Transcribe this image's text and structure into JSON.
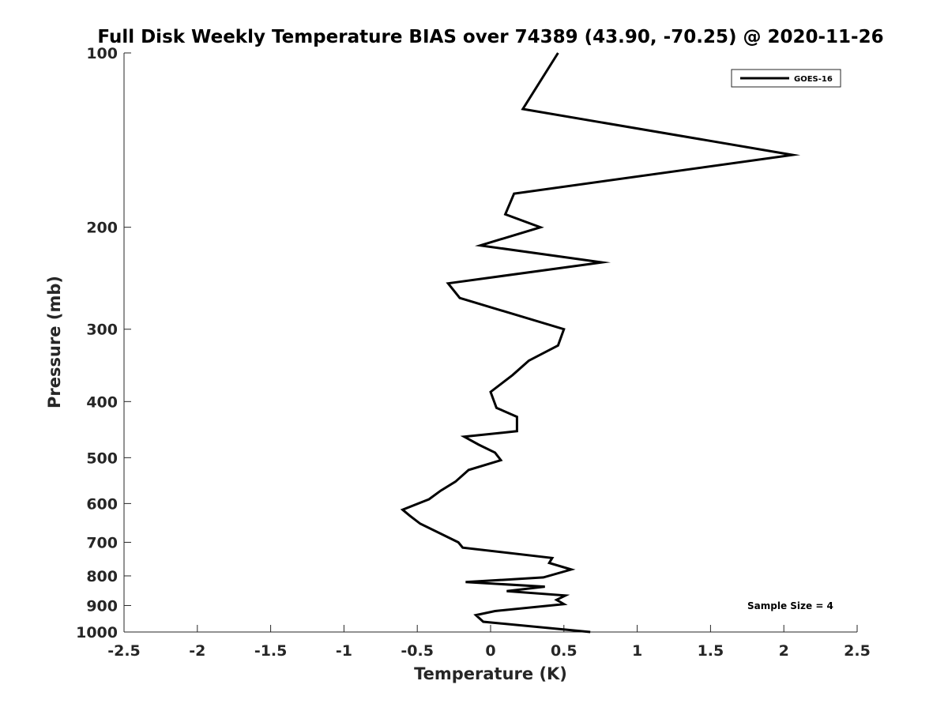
{
  "chart_data": {
    "type": "line",
    "title": "Full Disk Weekly Temperature BIAS over 74389 (43.90, -70.25) @ 2020-11-26",
    "xlabel": "Temperature (K)",
    "ylabel": "Pressure (mb)",
    "xlim": [
      -2.5,
      2.5
    ],
    "ylim": [
      100,
      1000
    ],
    "y_scale": "log",
    "y_reversed": true,
    "grid": false,
    "x_ticks": [
      -2.5,
      -2,
      -1.5,
      -1,
      -0.5,
      0,
      0.5,
      1,
      1.5,
      2,
      2.5
    ],
    "x_tick_labels": [
      "-2.5",
      "-2",
      "-1.5",
      "-1",
      "-0.5",
      "0",
      "0.5",
      "1",
      "1.5",
      "2",
      "2.5"
    ],
    "y_ticks": [
      100,
      200,
      300,
      400,
      500,
      600,
      700,
      800,
      900,
      1000
    ],
    "y_tick_labels": [
      "100",
      "200",
      "300",
      "400",
      "500",
      "600",
      "700",
      "800",
      "900",
      "1000"
    ],
    "legend": {
      "position": "top-right",
      "entries": [
        "GOES-16"
      ]
    },
    "annotation": "Sample Size = 4",
    "series": [
      {
        "name": "GOES-16",
        "color": "#000000",
        "points": [
          {
            "x": 0.46,
            "y": 100
          },
          {
            "x": 0.22,
            "y": 125
          },
          {
            "x": 2.06,
            "y": 150
          },
          {
            "x": 0.16,
            "y": 175
          },
          {
            "x": 0.1,
            "y": 190
          },
          {
            "x": 0.34,
            "y": 200
          },
          {
            "x": -0.07,
            "y": 215
          },
          {
            "x": 0.76,
            "y": 230
          },
          {
            "x": -0.29,
            "y": 250
          },
          {
            "x": -0.21,
            "y": 265
          },
          {
            "x": 0.5,
            "y": 300
          },
          {
            "x": 0.46,
            "y": 320
          },
          {
            "x": 0.26,
            "y": 340
          },
          {
            "x": 0.15,
            "y": 360
          },
          {
            "x": 0.0,
            "y": 385
          },
          {
            "x": 0.04,
            "y": 410
          },
          {
            "x": 0.18,
            "y": 425
          },
          {
            "x": 0.18,
            "y": 450
          },
          {
            "x": -0.18,
            "y": 460
          },
          {
            "x": -0.08,
            "y": 475
          },
          {
            "x": 0.03,
            "y": 490
          },
          {
            "x": 0.07,
            "y": 505
          },
          {
            "x": -0.15,
            "y": 525
          },
          {
            "x": -0.24,
            "y": 550
          },
          {
            "x": -0.34,
            "y": 570
          },
          {
            "x": -0.42,
            "y": 590
          },
          {
            "x": -0.6,
            "y": 615
          },
          {
            "x": -0.55,
            "y": 630
          },
          {
            "x": -0.48,
            "y": 650
          },
          {
            "x": -0.22,
            "y": 700
          },
          {
            "x": -0.19,
            "y": 715
          },
          {
            "x": 0.42,
            "y": 745
          },
          {
            "x": 0.4,
            "y": 760
          },
          {
            "x": 0.55,
            "y": 780
          },
          {
            "x": 0.36,
            "y": 805
          },
          {
            "x": -0.17,
            "y": 820
          },
          {
            "x": 0.37,
            "y": 835
          },
          {
            "x": 0.11,
            "y": 850
          },
          {
            "x": 0.51,
            "y": 865
          },
          {
            "x": 0.45,
            "y": 880
          },
          {
            "x": 0.5,
            "y": 895
          },
          {
            "x": 0.03,
            "y": 920
          },
          {
            "x": -0.1,
            "y": 935
          },
          {
            "x": -0.05,
            "y": 960
          },
          {
            "x": 0.68,
            "y": 1000
          }
        ]
      }
    ]
  }
}
